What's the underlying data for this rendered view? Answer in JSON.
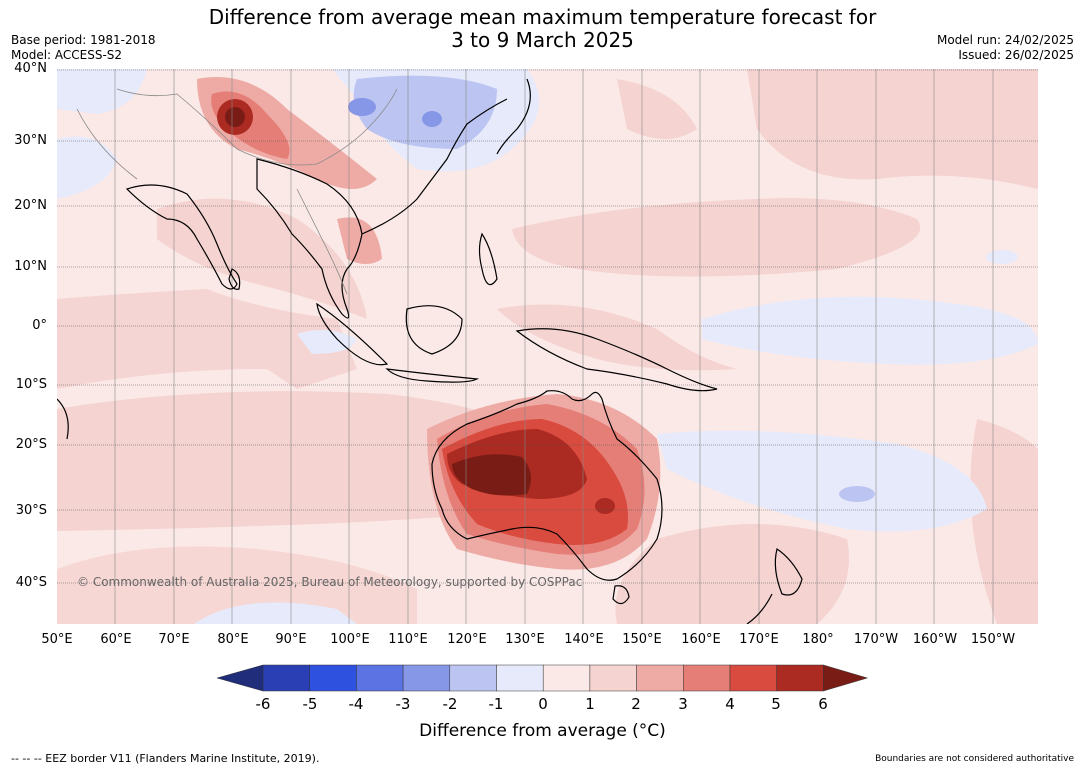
{
  "title": {
    "line1": "Difference from average mean maximum temperature forecast for",
    "line2": "3 to 9 March 2025"
  },
  "meta_left": {
    "base_period": "Base period: 1981-2018",
    "model": "Model: ACCESS-S2"
  },
  "meta_right": {
    "model_run": "Model run: 24/02/2025",
    "issued": "Issued: 26/02/2025"
  },
  "copyright": "© Commonwealth of Australia 2025, Bureau of Meteorology, supported by COSPPac",
  "lat_labels": [
    "40°N",
    "30°N",
    "20°N",
    "10°N",
    "0°",
    "10°S",
    "20°S",
    "30°S",
    "40°S"
  ],
  "lon_labels": [
    "50°E",
    "60°E",
    "70°E",
    "80°E",
    "90°E",
    "100°E",
    "110°E",
    "120°E",
    "130°E",
    "140°E",
    "150°E",
    "160°E",
    "170°E",
    "180°",
    "170°W",
    "160°W",
    "150°W"
  ],
  "colorbar": {
    "label": "Difference from average (°C)",
    "tick_labels": [
      "-6",
      "-5",
      "-4",
      "-3",
      "-2",
      "-1",
      "0",
      "1",
      "2",
      "3",
      "4",
      "5",
      "6"
    ],
    "colors": [
      "#1f2d7a",
      "#2a3fb3",
      "#2f51e0",
      "#5b73e3",
      "#8797e8",
      "#bcc4f2",
      "#e6eafb",
      "#fbe9e7",
      "#f4d3d0",
      "#eeaba6",
      "#e57e76",
      "#d94b3f",
      "#ab2a21",
      "#7a1c16"
    ]
  },
  "footer": {
    "left": "--  --  -- EEZ border V11 (Flanders Marine Institute, 2019).",
    "right": "Boundaries are not considered authoritative"
  },
  "map_data": {
    "lat_range": [
      -46,
      40
    ],
    "lon_range": [
      50,
      218
    ],
    "background_anomaly": "0 to 1",
    "features": [
      {
        "region": "Western and central Australia",
        "anomaly": "5 to 6+"
      },
      {
        "region": "South-eastern Australia",
        "anomaly": "4 to 5"
      },
      {
        "region": "Northern India / Himalaya",
        "anomaly": "4 to 6"
      },
      {
        "region": "Eastern China",
        "anomaly": "-1 to -3"
      },
      {
        "region": "Equatorial central Pacific",
        "anomaly": "-1 to 0"
      },
      {
        "region": "South-west Pacific",
        "anomaly": "-1 to -2"
      }
    ]
  }
}
